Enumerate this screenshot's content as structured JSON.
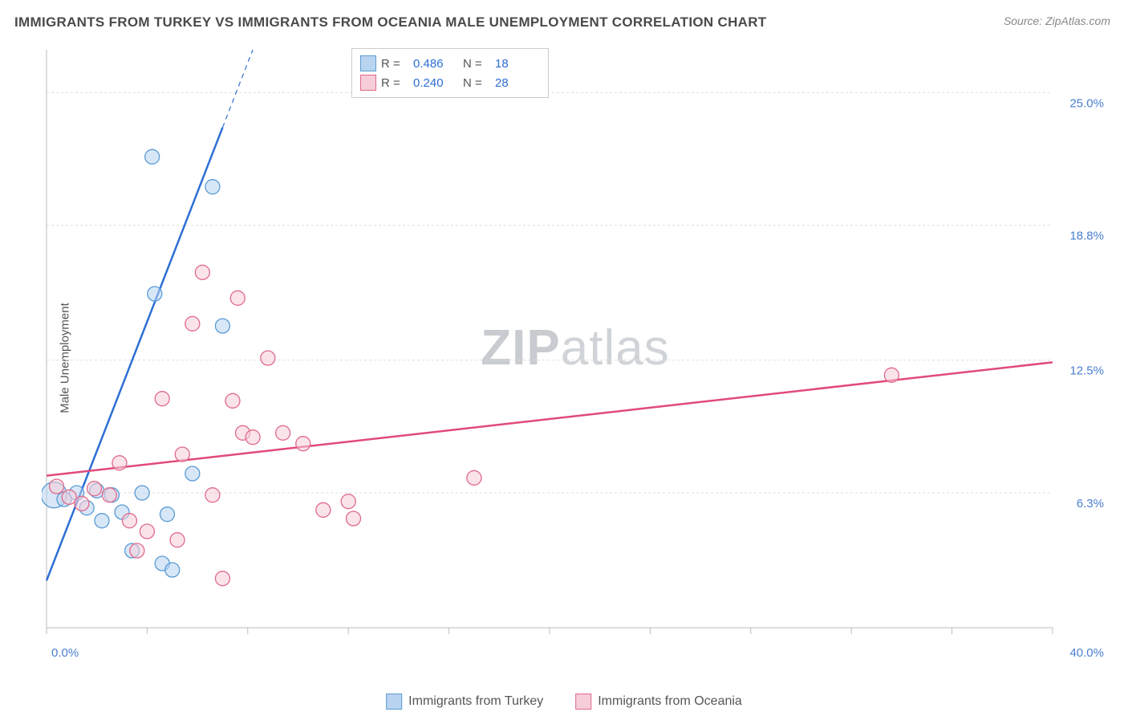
{
  "title": "IMMIGRANTS FROM TURKEY VS IMMIGRANTS FROM OCEANIA MALE UNEMPLOYMENT CORRELATION CHART",
  "source_label": "Source: ",
  "source_name": "ZipAtlas.com",
  "y_axis_label": "Male Unemployment",
  "watermark": {
    "zip": "ZIP",
    "atlas": "atlas"
  },
  "chart": {
    "type": "scatter",
    "background_color": "#ffffff",
    "grid_color": "#dddddd",
    "axis_line_color": "#bbbbbb",
    "tick_color": "#bbbbbb",
    "label_color": "#4a7fd0",
    "x_domain": [
      0,
      40
    ],
    "y_domain": [
      0,
      27
    ],
    "x_ticks": [
      0,
      4,
      8,
      12,
      16,
      20,
      24,
      28,
      32,
      36,
      40
    ],
    "x_label_min": "0.0%",
    "x_label_max": "40.0%",
    "y_grid": [
      {
        "v": 6.3,
        "label": "6.3%"
      },
      {
        "v": 12.5,
        "label": "12.5%"
      },
      {
        "v": 18.8,
        "label": "18.8%"
      },
      {
        "v": 25.0,
        "label": "25.0%"
      }
    ],
    "series": [
      {
        "name": "Immigrants from Turkey",
        "legend_name": "turkey",
        "marker_radius": 9,
        "fill": "#b8d4f0",
        "stroke": "#5a9bd4",
        "fill_opacity": 0.55,
        "correlation_R": "0.486",
        "correlation_N": "18",
        "trend": {
          "x1": 0,
          "y1": 2.2,
          "x2": 8.2,
          "y2": 27,
          "solid_until_x": 7.0,
          "color": "#2d6fd4",
          "width": 2.5
        },
        "points": [
          {
            "x": 0.3,
            "y": 6.2,
            "r": 16
          },
          {
            "x": 0.7,
            "y": 6.0
          },
          {
            "x": 1.2,
            "y": 6.3
          },
          {
            "x": 1.6,
            "y": 5.6
          },
          {
            "x": 2.0,
            "y": 6.4
          },
          {
            "x": 2.2,
            "y": 5.0
          },
          {
            "x": 2.6,
            "y": 6.2
          },
          {
            "x": 3.0,
            "y": 5.4
          },
          {
            "x": 3.4,
            "y": 3.6
          },
          {
            "x": 3.8,
            "y": 6.3
          },
          {
            "x": 4.2,
            "y": 22.0
          },
          {
            "x": 4.3,
            "y": 15.6
          },
          {
            "x": 4.6,
            "y": 3.0
          },
          {
            "x": 4.8,
            "y": 5.3
          },
          {
            "x": 5.0,
            "y": 2.7
          },
          {
            "x": 5.8,
            "y": 7.2
          },
          {
            "x": 6.6,
            "y": 20.6
          },
          {
            "x": 7.0,
            "y": 14.1
          }
        ]
      },
      {
        "name": "Immigrants from Oceania",
        "legend_name": "oceania",
        "marker_radius": 9,
        "fill": "#f6cdd8",
        "stroke": "#e06a8b",
        "fill_opacity": 0.55,
        "correlation_R": "0.240",
        "correlation_N": "28",
        "trend": {
          "x1": 0,
          "y1": 7.1,
          "x2": 40,
          "y2": 12.4,
          "color": "#e14a78",
          "width": 2.5
        },
        "points": [
          {
            "x": 0.4,
            "y": 6.6
          },
          {
            "x": 0.9,
            "y": 6.1
          },
          {
            "x": 1.4,
            "y": 5.8
          },
          {
            "x": 1.9,
            "y": 6.5
          },
          {
            "x": 2.5,
            "y": 6.2
          },
          {
            "x": 2.9,
            "y": 7.7
          },
          {
            "x": 3.3,
            "y": 5.0
          },
          {
            "x": 3.6,
            "y": 3.6
          },
          {
            "x": 4.0,
            "y": 4.5
          },
          {
            "x": 4.6,
            "y": 10.7
          },
          {
            "x": 5.2,
            "y": 4.1
          },
          {
            "x": 5.4,
            "y": 8.1
          },
          {
            "x": 5.8,
            "y": 14.2
          },
          {
            "x": 6.2,
            "y": 16.6
          },
          {
            "x": 6.6,
            "y": 6.2
          },
          {
            "x": 7.0,
            "y": 2.3
          },
          {
            "x": 7.4,
            "y": 10.6
          },
          {
            "x": 7.6,
            "y": 15.4
          },
          {
            "x": 7.8,
            "y": 9.1
          },
          {
            "x": 8.2,
            "y": 8.9
          },
          {
            "x": 8.8,
            "y": 12.6
          },
          {
            "x": 9.4,
            "y": 9.1
          },
          {
            "x": 10.2,
            "y": 8.6
          },
          {
            "x": 11.0,
            "y": 5.5
          },
          {
            "x": 12.0,
            "y": 5.9
          },
          {
            "x": 12.2,
            "y": 5.1
          },
          {
            "x": 17.0,
            "y": 7.0
          },
          {
            "x": 33.6,
            "y": 11.8
          }
        ]
      }
    ]
  },
  "legend_top": {
    "rows": [
      {
        "sw_fill": "#b8d4f0",
        "sw_stroke": "#5a9bd4",
        "R_lab": "R = ",
        "R": "0.486",
        "N_lab": "N = ",
        "N": "18"
      },
      {
        "sw_fill": "#f6cdd8",
        "sw_stroke": "#e06a8b",
        "R_lab": "R = ",
        "R": "0.240",
        "N_lab": "N = ",
        "N": "28"
      }
    ]
  },
  "footer_legend": {
    "items": [
      {
        "sw_fill": "#b8d4f0",
        "sw_stroke": "#5a9bd4",
        "label": "Immigrants from Turkey"
      },
      {
        "sw_fill": "#f6cdd8",
        "sw_stroke": "#e06a8b",
        "label": "Immigrants from Oceania"
      }
    ]
  }
}
